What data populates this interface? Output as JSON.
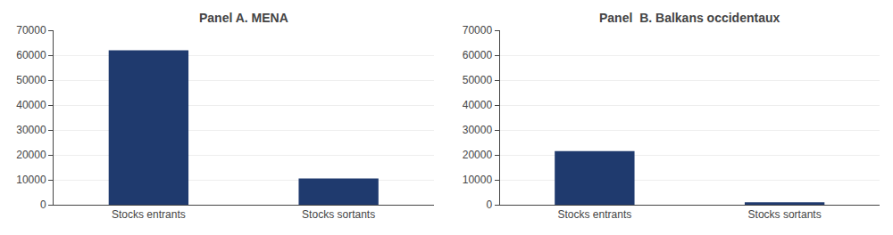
{
  "chart_data": [
    {
      "type": "bar",
      "title": "Panel A. MENA",
      "categories": [
        "Stocks entrants",
        "Stocks sortants"
      ],
      "values": [
        62000,
        10500
      ],
      "color": "#1f3a6e",
      "ylim": [
        0,
        70000
      ],
      "yticks": [
        0,
        10000,
        20000,
        30000,
        40000,
        50000,
        60000,
        70000
      ],
      "grid": true
    },
    {
      "type": "bar",
      "title": "Panel  B. Balkans occidentaux",
      "categories": [
        "Stocks entrants",
        "Stocks sortants"
      ],
      "values": [
        21500,
        1000
      ],
      "color": "#1f3a6e",
      "ylim": [
        0,
        70000
      ],
      "yticks": [
        0,
        10000,
        20000,
        30000,
        40000,
        50000,
        60000,
        70000
      ],
      "grid": true
    }
  ]
}
